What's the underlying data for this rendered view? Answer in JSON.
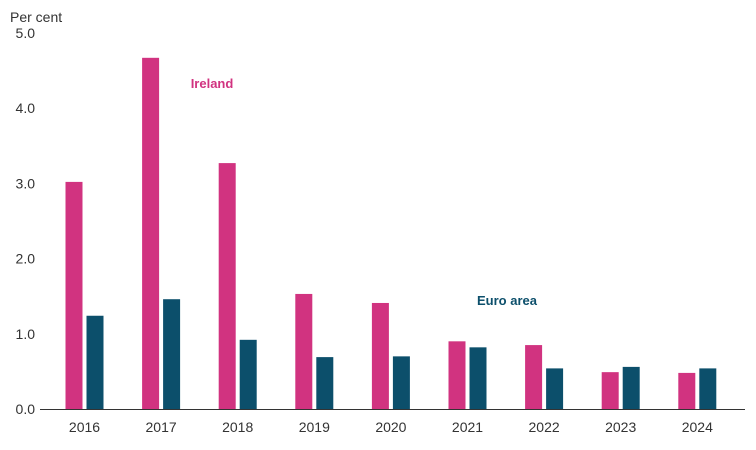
{
  "chart_data": {
    "type": "bar",
    "title": "",
    "ylabel": "Per cent",
    "xlabel": "",
    "ylim": [
      0,
      5
    ],
    "yticks": [
      0,
      1,
      2,
      3,
      4,
      5
    ],
    "ytick_labels": [
      "0.0",
      "1.0",
      "2.0",
      "3.0",
      "4.0",
      "5.0"
    ],
    "grid": false,
    "categories": [
      "2016",
      "2017",
      "2018",
      "2019",
      "2020",
      "2021",
      "2022",
      "2023",
      "2024"
    ],
    "series": [
      {
        "name": "Ireland",
        "color": "#d13380",
        "values": [
          3.02,
          4.67,
          3.27,
          1.53,
          1.41,
          0.9,
          0.85,
          0.49,
          0.48
        ]
      },
      {
        "name": "Euro area",
        "color": "#0c4f6b",
        "values": [
          1.24,
          1.46,
          0.92,
          0.69,
          0.7,
          0.82,
          0.54,
          0.56,
          0.54
        ]
      }
    ]
  }
}
